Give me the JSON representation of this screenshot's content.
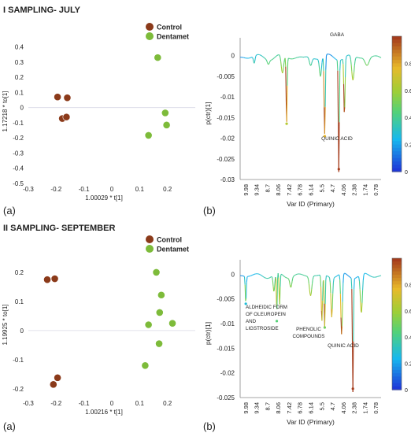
{
  "figure": {
    "section1_title": "I SAMPLING- JULY",
    "section2_title": "II SAMPLING- SEPTEMBER",
    "panel_a_label": "(a)",
    "panel_b_label": "(b)"
  },
  "chart_data": [
    {
      "id": "july-scores",
      "type": "scatter",
      "xlabel": "1.00029 * t[1]",
      "ylabel": "1.17218 * to[1]",
      "xlim": [
        -0.3,
        0.3
      ],
      "ylim": [
        -0.5,
        0.45
      ],
      "x_ticks": [
        "-0.3",
        "-0.2",
        "-0.1",
        "0",
        "0.1",
        "0.2"
      ],
      "x_tick_values": [
        -0.3,
        -0.2,
        -0.1,
        0,
        0.1,
        0.2
      ],
      "y_ticks": [
        "0.4",
        "0.3",
        "0.2",
        "0.1",
        "0",
        "-0.1",
        "-0.2",
        "-0.3",
        "-0.4",
        "-0.5"
      ],
      "y_tick_values": [
        0.4,
        0.3,
        0.2,
        0.1,
        0,
        -0.1,
        -0.2,
        -0.3,
        -0.4,
        -0.5
      ],
      "legend": {
        "placement": "top-right"
      },
      "series": [
        {
          "name": "Control",
          "color": "#8b3a1a",
          "points": [
            [
              -0.195,
              0.07
            ],
            [
              -0.16,
              0.065
            ],
            [
              -0.178,
              -0.072
            ],
            [
              -0.163,
              -0.062
            ]
          ]
        },
        {
          "name": "Dentamet",
          "color": "#7dbb3a",
          "points": [
            [
              0.165,
              0.33
            ],
            [
              0.192,
              -0.035
            ],
            [
              0.197,
              -0.115
            ],
            [
              0.132,
              -0.183
            ]
          ]
        }
      ]
    },
    {
      "id": "july-loadings",
      "type": "line",
      "xlabel": "Var ID (Primary)",
      "ylabel": "p(ctr)[1]",
      "x_ticks": [
        "9.98",
        "9.34",
        "8.7",
        "8.06",
        "7.42",
        "6.78",
        "6.14",
        "5.5",
        "4.7",
        "4.06",
        "2.38",
        "1.74",
        "0.78"
      ],
      "y_ticks": [
        "0",
        "-0.005",
        "-0.01",
        "-0.015",
        "-0.02",
        "-0.025",
        "-0.03"
      ],
      "y_tick_values": [
        0,
        -0.005,
        -0.01,
        -0.015,
        -0.02,
        -0.025,
        -0.03
      ],
      "ylim": [
        -0.03,
        0.002
      ],
      "colorbar_ticks": [
        "0.8",
        "0.6",
        "0.4",
        "0.2",
        "0"
      ],
      "annotations": [
        "GABA",
        "QUINIC ACID"
      ],
      "key_points": [
        [
          0.33,
          -0.0165
        ],
        [
          0.6,
          -0.0195
        ],
        [
          0.7,
          -0.0275
        ]
      ]
    },
    {
      "id": "september-scores",
      "type": "scatter",
      "xlabel": "1.00216 * t[1]",
      "ylabel": "1.19925 * to[1]",
      "xlim": [
        -0.3,
        0.3
      ],
      "ylim": [
        -0.23,
        0.27
      ],
      "x_ticks": [
        "-0.3",
        "-0.2",
        "-0.1",
        "0",
        "0.1",
        "0.2"
      ],
      "x_tick_values": [
        -0.3,
        -0.2,
        -0.1,
        0,
        0.1,
        0.2
      ],
      "y_ticks": [
        "0.2",
        "0.1",
        "0",
        "-0.1",
        "-0.2"
      ],
      "y_tick_values": [
        0.2,
        0.1,
        0,
        -0.1,
        -0.2
      ],
      "legend": {
        "placement": "top-right"
      },
      "series": [
        {
          "name": "Control",
          "color": "#8b3a1a",
          "points": [
            [
              -0.232,
              0.175
            ],
            [
              -0.205,
              0.178
            ],
            [
              -0.195,
              -0.162
            ],
            [
              -0.21,
              -0.185
            ]
          ]
        },
        {
          "name": "Dentamet",
          "color": "#7dbb3a",
          "points": [
            [
              0.16,
              0.2
            ],
            [
              0.178,
              0.122
            ],
            [
              0.172,
              0.062
            ],
            [
              0.132,
              0.02
            ],
            [
              0.218,
              0.025
            ],
            [
              0.17,
              -0.045
            ],
            [
              0.12,
              -0.12
            ]
          ]
        }
      ]
    },
    {
      "id": "september-loadings",
      "type": "line",
      "xlabel": "Var ID (Primary)",
      "ylabel": "p(ctr)[1]",
      "x_ticks": [
        "9.98",
        "9.34",
        "8.7",
        "8.06",
        "7.42",
        "6.78",
        "6.14",
        "5.5",
        "4.7",
        "4.06",
        "2.38",
        "1.74",
        "0.78"
      ],
      "y_ticks": [
        "0",
        "-0.005",
        "-0.01",
        "-0.015",
        "-0.02",
        "-0.025"
      ],
      "y_tick_values": [
        0,
        -0.005,
        -0.01,
        -0.015,
        -0.02,
        -0.025
      ],
      "ylim": [
        -0.025,
        0.001
      ],
      "colorbar_ticks": [
        "0.8",
        "0.6",
        "0.4",
        "0.2",
        "0"
      ],
      "annotations": [
        "ALDHEIDIC FORM OF OLEUROPEIN AND LIGSTROSIDE",
        "PHENOLIC COMPOUNDS",
        "QUINIC ACID"
      ],
      "key_points": [
        [
          0.04,
          -0.006
        ],
        [
          0.26,
          -0.0095
        ],
        [
          0.6,
          -0.0108
        ],
        [
          0.8,
          -0.0232
        ]
      ]
    }
  ]
}
